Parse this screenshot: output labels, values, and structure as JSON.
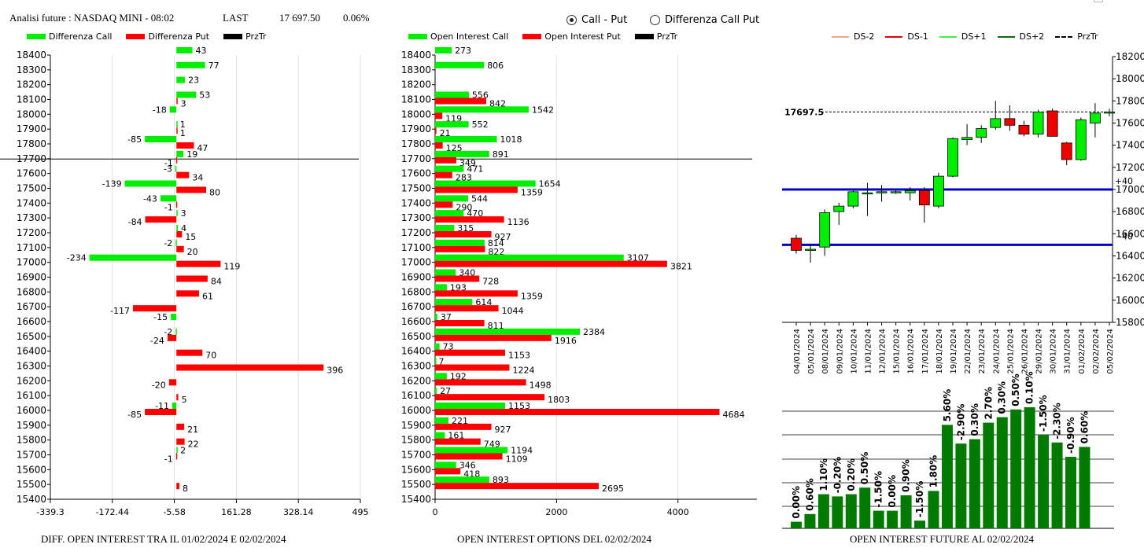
{
  "header": {
    "instrument": "Analisi future : NASDAQ MINI - 08:02",
    "last_label": "LAST",
    "last_value": "17 697.50",
    "change": "0.06%"
  },
  "mode_radio": {
    "options": [
      "Call - Put",
      "Differenza Call Put"
    ],
    "selected": "Call - Put"
  },
  "legends": {
    "diff": [
      {
        "label": "Differenza Call",
        "color": "#00ee00"
      },
      {
        "label": "Differenza Put",
        "color": "#ff0000"
      },
      {
        "label": "PrzTr",
        "color": "#000000"
      }
    ],
    "oi": [
      {
        "label": "Open Interest Call",
        "color": "#00ee00"
      },
      {
        "label": "Open Interest Put",
        "color": "#ff0000"
      },
      {
        "label": "PrzTr",
        "color": "#000000"
      }
    ],
    "future": [
      {
        "label": "DS-2",
        "color": "#f4a582",
        "style": "solid"
      },
      {
        "label": "DS-1",
        "color": "#e00000",
        "style": "solid"
      },
      {
        "label": "DS+1",
        "color": "#44ee44",
        "style": "solid"
      },
      {
        "label": "DS+2",
        "color": "#0b6e0b",
        "style": "solid"
      },
      {
        "label": "PrzTr",
        "color": "#000000",
        "style": "dashed"
      }
    ]
  },
  "captions": {
    "diff": "DIFF. OPEN INTEREST TRA IL 01/02/2024 E 02/02/2024",
    "oi": "OPEN INTEREST OPTIONS DEL 02/02/2024",
    "future": "OPEN INTEREST FUTURE AL 02/02/2024"
  },
  "chart_data": [
    {
      "type": "bar",
      "orientation": "horizontal",
      "id": "diff",
      "strikes": [
        18400,
        18300,
        18200,
        18100,
        18000,
        17900,
        17800,
        17700,
        17600,
        17500,
        17400,
        17300,
        17200,
        17100,
        17000,
        16900,
        16800,
        16700,
        16600,
        16500,
        16400,
        16300,
        16200,
        16100,
        16000,
        15900,
        15800,
        15700,
        15600,
        15500,
        15400
      ],
      "series": [
        {
          "name": "Differenza Call",
          "color": "#00ee00",
          "values": [
            43,
            77,
            23,
            53,
            -18,
            1,
            -85,
            19,
            -3,
            -139,
            -43,
            3,
            4,
            -2,
            -234,
            null,
            null,
            null,
            -15,
            -2,
            null,
            null,
            null,
            null,
            -11,
            null,
            null,
            2,
            null,
            null,
            null
          ]
        },
        {
          "name": "Differenza Put",
          "color": "#ff0000",
          "values": [
            null,
            null,
            null,
            3,
            null,
            1,
            47,
            -1,
            34,
            80,
            -1,
            -84,
            15,
            20,
            119,
            84,
            61,
            -117,
            null,
            -24,
            70,
            396,
            -20,
            5,
            -85,
            21,
            22,
            -1,
            null,
            8,
            null
          ]
        }
      ],
      "price_line": 17697.5,
      "xticks": [
        "-339.3",
        "-172.44",
        "-5.58",
        "161.28",
        "328.14",
        "495"
      ],
      "xlim": [
        -339.3,
        495
      ],
      "ylim": [
        15400,
        18400
      ]
    },
    {
      "type": "bar",
      "orientation": "horizontal",
      "id": "oi",
      "strikes": [
        18400,
        18300,
        18200,
        18100,
        18000,
        17900,
        17800,
        17700,
        17600,
        17500,
        17400,
        17300,
        17200,
        17100,
        17000,
        16900,
        16800,
        16700,
        16600,
        16500,
        16400,
        16300,
        16200,
        16100,
        16000,
        15900,
        15800,
        15700,
        15600,
        15500,
        15400
      ],
      "series": [
        {
          "name": "Open Interest Call",
          "color": "#00ee00",
          "values": [
            273,
            806,
            null,
            556,
            1542,
            552,
            1018,
            891,
            471,
            1654,
            544,
            470,
            315,
            814,
            3107,
            340,
            193,
            614,
            37,
            2384,
            73,
            7,
            192,
            27,
            1153,
            221,
            161,
            1194,
            346,
            893,
            null
          ]
        },
        {
          "name": "Open Interest Put",
          "color": "#ff0000",
          "values": [
            null,
            null,
            null,
            842,
            119,
            21,
            125,
            349,
            283,
            1359,
            290,
            1136,
            927,
            822,
            3821,
            728,
            1359,
            1044,
            811,
            1916,
            1153,
            1224,
            1498,
            1803,
            4684,
            927,
            749,
            1109,
            418,
            2695,
            null
          ]
        }
      ],
      "price_line": 17697.5,
      "xticks": [
        "0",
        "2000",
        "4000"
      ],
      "xlim": [
        0,
        5300
      ],
      "ylim": [
        15400,
        18400
      ]
    },
    {
      "type": "candlestick",
      "id": "future_price",
      "dates": [
        "04/01/2024",
        "05/01/2024",
        "08/01/2024",
        "09/01/2024",
        "10/01/2024",
        "11/01/2024",
        "12/01/2024",
        "15/01/2024",
        "16/01/2024",
        "17/01/2024",
        "18/01/2024",
        "19/01/2024",
        "22/01/2024",
        "23/01/2024",
        "24/01/2024",
        "25/01/2024",
        "26/01/2024",
        "29/01/2024",
        "30/01/2024",
        "31/01/2024",
        "01/02/2024",
        "02/02/2024",
        "05/02/2024"
      ],
      "ohlc": [
        [
          16560,
          16590,
          16420,
          16450
        ],
        [
          16450,
          16500,
          16340,
          16460
        ],
        [
          16480,
          16820,
          16400,
          16790
        ],
        [
          16800,
          16880,
          16680,
          16850
        ],
        [
          16850,
          16990,
          16830,
          16980
        ],
        [
          16960,
          17060,
          16760,
          16970
        ],
        [
          16970,
          17040,
          16890,
          16980
        ],
        [
          16975,
          16990,
          16960,
          16980
        ],
        [
          16970,
          17020,
          16900,
          16990
        ],
        [
          16990,
          17020,
          16700,
          16860
        ],
        [
          16850,
          17150,
          16830,
          17120
        ],
        [
          17120,
          17470,
          17110,
          17460
        ],
        [
          17450,
          17590,
          17400,
          17470
        ],
        [
          17470,
          17580,
          17420,
          17550
        ],
        [
          17560,
          17800,
          17540,
          17640
        ],
        [
          17640,
          17760,
          17530,
          17580
        ],
        [
          17580,
          17620,
          17480,
          17500
        ],
        [
          17500,
          17720,
          17470,
          17700
        ],
        [
          17710,
          17730,
          17480,
          17480
        ],
        [
          17420,
          17430,
          17220,
          17270
        ],
        [
          17270,
          17650,
          17260,
          17630
        ],
        [
          17600,
          17780,
          17470,
          17690
        ],
        [
          17700,
          17730,
          17660,
          17700
        ]
      ],
      "last_price_label": "17697.5",
      "hlines": [
        {
          "value": 17000,
          "label": "+40"
        },
        {
          "value": 16500,
          "label": "-40"
        }
      ],
      "yticks": [
        15800,
        16000,
        16200,
        16400,
        16600,
        16800,
        17000,
        17200,
        17400,
        17600,
        17800,
        18000,
        18200
      ],
      "ylim": [
        15800,
        18200
      ]
    },
    {
      "type": "bar",
      "id": "future_oi",
      "dates": [
        "04/01/2024",
        "05/01/2024",
        "08/01/2024",
        "09/01/2024",
        "10/01/2024",
        "11/01/2024",
        "12/01/2024",
        "15/01/2024",
        "16/01/2024",
        "17/01/2024",
        "18/01/2024",
        "19/01/2024",
        "22/01/2024",
        "23/01/2024",
        "24/01/2024",
        "25/01/2024",
        "26/01/2024",
        "29/01/2024",
        "30/01/2024",
        "31/01/2024",
        "01/02/2024",
        "02/02/2024"
      ],
      "relative_level": [
        0.06,
        0.13,
        0.31,
        0.29,
        0.31,
        0.37,
        0.16,
        0.16,
        0.3,
        0.07,
        0.34,
        0.94,
        0.77,
        0.81,
        0.96,
        1.01,
        1.08,
        1.1,
        0.85,
        0.78,
        0.65,
        0.74
      ],
      "labels": [
        "0.00%",
        "0.60%",
        "1.10%",
        "-0.20%",
        "0.20%",
        "0.50%",
        "-1.50%",
        "0.00%",
        "0.90%",
        "-1.50%",
        "1.80%",
        "5.60%",
        "-2.90%",
        "0.30%",
        "2.70%",
        "0.30%",
        "0.50%",
        "0.10%",
        "-1.50%",
        "-2.30%",
        "-0.90%",
        "0.60%"
      ],
      "color": "#007a00"
    }
  ]
}
